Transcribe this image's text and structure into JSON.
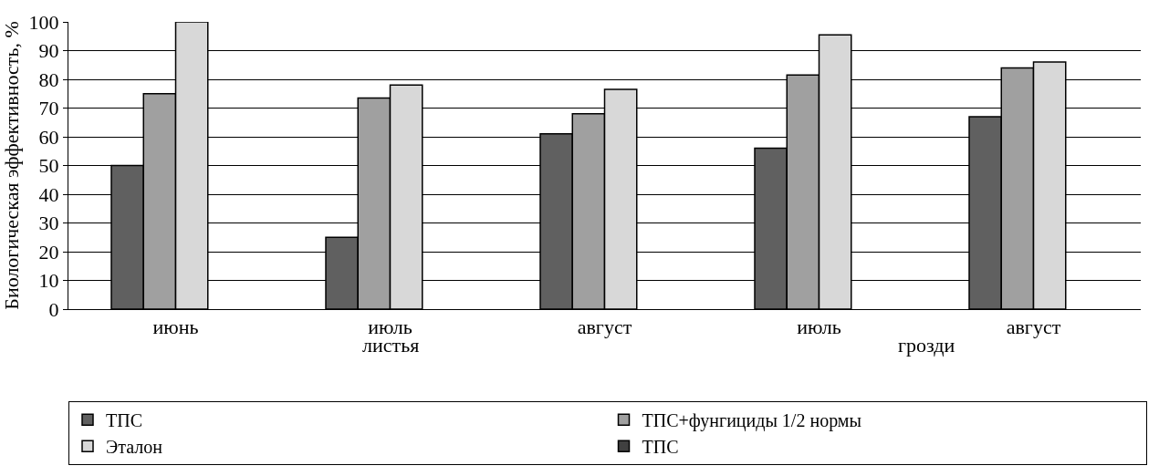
{
  "chart_data": {
    "type": "bar",
    "ylabel": "Биологическая эффективность, %",
    "categories": [
      "июнь",
      "июль",
      "август",
      "июль",
      "август"
    ],
    "annotations": [
      "листья",
      "грозди"
    ],
    "series": [
      {
        "name": "ТПС",
        "color": "#606060",
        "values": [
          50,
          25,
          61,
          56,
          67
        ]
      },
      {
        "name": "ТПС+фунгициды 1/2 нормы",
        "color": "#a0a0a0",
        "values": [
          75,
          73.5,
          68,
          81.5,
          84
        ]
      },
      {
        "name": "Эталон",
        "color": "#d8d8d8",
        "values": [
          100,
          78,
          76.5,
          95.5,
          86
        ]
      },
      {
        "name": "ТПС",
        "color": "#404040",
        "values": [
          null,
          null,
          null,
          null,
          null
        ]
      }
    ],
    "ylim": [
      0,
      100
    ],
    "yticks": [
      0,
      10,
      20,
      30,
      40,
      50,
      60,
      70,
      80,
      90,
      100
    ],
    "grid": "y",
    "legend": "bottom"
  }
}
